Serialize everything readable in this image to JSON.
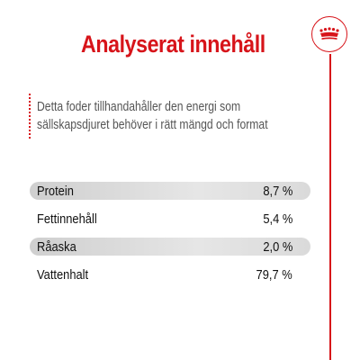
{
  "header": {
    "title": "Analyserat innehåll"
  },
  "description": "Detta foder tillhandahåller den energi som sällskapsdjuret behöver i rätt mängd och format",
  "nutrients": [
    {
      "label": "Protein",
      "value": "8,7 %"
    },
    {
      "label": "Fettinnehåll",
      "value": "5,4 %"
    },
    {
      "label": "Råaska",
      "value": "2,0 %"
    },
    {
      "label": "Vattenhalt",
      "value": "79,7 %"
    }
  ],
  "colors": {
    "accent": "#d7141a",
    "row_shade": "#d9d9d9"
  },
  "logo": {
    "icon": "crown-icon"
  }
}
